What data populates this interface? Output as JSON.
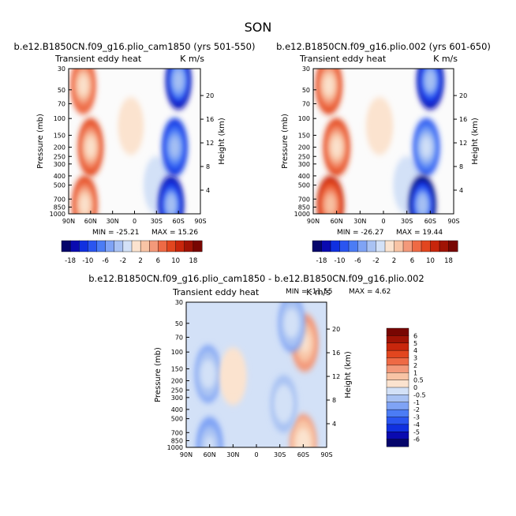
{
  "figure": {
    "title": "SON",
    "colors": {
      "scale": [
        "#06066b",
        "#0a0ab0",
        "#1030e0",
        "#2a55f0",
        "#4b7cf5",
        "#7fa3f5",
        "#a9c2f3",
        "#d3e1f7",
        "#fbe3cf",
        "#f8c4a5",
        "#f3997a",
        "#ee6a45",
        "#e2461f",
        "#c8260c",
        "#a01305",
        "#780602"
      ],
      "frame": "#000000"
    }
  },
  "chart_data": [
    {
      "id": "left",
      "type": "contour",
      "title": "b.e12.B1850CN.f09_g16.plio_cam1850 (yrs 501-550)",
      "subtitle_left": "Transient eddy heat",
      "subtitle_right": "K m/s",
      "xlabel": "",
      "ylabel": "Pressure (mb)",
      "y2label": "Height (km)",
      "x_ticks": [
        "90N",
        "60N",
        "30N",
        "0",
        "30S",
        "60S",
        "90S"
      ],
      "y_ticks": [
        "30",
        "50",
        "70",
        "100",
        "150",
        "200",
        "250",
        "300",
        "400",
        "500",
        "700",
        "850",
        "1000"
      ],
      "y2_ticks": [
        "20",
        "16",
        "12",
        "8",
        "4"
      ],
      "min_text": "MIN = -25.21",
      "max_text": "MAX = 15.26",
      "min": -25.21,
      "max": 15.26,
      "colorbar_labels": [
        "-18",
        "-10",
        "-6",
        "-2",
        "2",
        "6",
        "10",
        "18"
      ],
      "features": [
        {
          "lat": 70,
          "p": 45,
          "value": 12
        },
        {
          "lat": 60,
          "p": 200,
          "value": 13
        },
        {
          "lat": 68,
          "p": 800,
          "value": 15
        },
        {
          "lat": 5,
          "p": 120,
          "value": 1
        },
        {
          "lat": -30,
          "p": 500,
          "value": -2
        },
        {
          "lat": -60,
          "p": 40,
          "value": -20
        },
        {
          "lat": -55,
          "p": 200,
          "value": -16
        },
        {
          "lat": -50,
          "p": 800,
          "value": -22
        }
      ]
    },
    {
      "id": "right",
      "type": "contour",
      "title": "b.e12.B1850CN.f09_g16.plio.002 (yrs 601-650)",
      "subtitle_left": "Transient eddy heat",
      "subtitle_right": "K m/s",
      "xlabel": "",
      "ylabel": "Pressure (mb)",
      "y2label": "Height (km)",
      "x_ticks": [
        "90N",
        "60N",
        "30N",
        "0",
        "30S",
        "60S",
        "90S"
      ],
      "y_ticks": [
        "30",
        "50",
        "70",
        "100",
        "150",
        "200",
        "250",
        "300",
        "400",
        "500",
        "700",
        "850",
        "1000"
      ],
      "y2_ticks": [
        "20",
        "16",
        "12",
        "8",
        "4"
      ],
      "min_text": "MIN = -26.27",
      "max_text": "MAX = 19.44",
      "min": -26.27,
      "max": 19.44,
      "colorbar_labels": [
        "-18",
        "-10",
        "-6",
        "-2",
        "2",
        "6",
        "10",
        "18"
      ],
      "features": [
        {
          "lat": 70,
          "p": 45,
          "value": 14
        },
        {
          "lat": 60,
          "p": 200,
          "value": 14
        },
        {
          "lat": 68,
          "p": 800,
          "value": 18
        },
        {
          "lat": 5,
          "p": 120,
          "value": 1
        },
        {
          "lat": -30,
          "p": 500,
          "value": -2
        },
        {
          "lat": -60,
          "p": 40,
          "value": -22
        },
        {
          "lat": -55,
          "p": 200,
          "value": -16
        },
        {
          "lat": -50,
          "p": 800,
          "value": -24
        }
      ]
    },
    {
      "id": "diff",
      "type": "contour",
      "title": "b.e12.B1850CN.f09_g16.plio_cam1850 - b.e12.B1850CN.f09_g16.plio.002",
      "subtitle_left": "Transient eddy heat",
      "subtitle_right": "K m/s",
      "xlabel": "",
      "ylabel": "Pressure (mb)",
      "y2label": "Height (km)",
      "x_ticks": [
        "90N",
        "60N",
        "30N",
        "0",
        "30S",
        "60S",
        "90S"
      ],
      "y_ticks": [
        "30",
        "50",
        "70",
        "100",
        "150",
        "200",
        "250",
        "300",
        "400",
        "500",
        "700",
        "850",
        "1000"
      ],
      "y2_ticks": [
        "20",
        "16",
        "12",
        "8",
        "4"
      ],
      "min_text": "MIN = -11.55",
      "max_text": "MAX =    4.62",
      "min": -11.55,
      "max": 4.62,
      "colorbar_labels": [
        "6",
        "5",
        "4",
        "3",
        "2",
        "1",
        "0.5",
        "0",
        "-0.5",
        "-1",
        "-2",
        "-3",
        "-4",
        "-5",
        "-6"
      ],
      "features": [
        {
          "lat": -62,
          "p": 80,
          "value": 4
        },
        {
          "lat": -60,
          "p": 900,
          "value": 3
        },
        {
          "lat": -45,
          "p": 50,
          "value": -3
        },
        {
          "lat": 62,
          "p": 170,
          "value": -3
        },
        {
          "lat": 60,
          "p": 960,
          "value": -4
        },
        {
          "lat": -35,
          "p": 350,
          "value": -2
        },
        {
          "lat": 30,
          "p": 180,
          "value": 1
        }
      ]
    }
  ]
}
